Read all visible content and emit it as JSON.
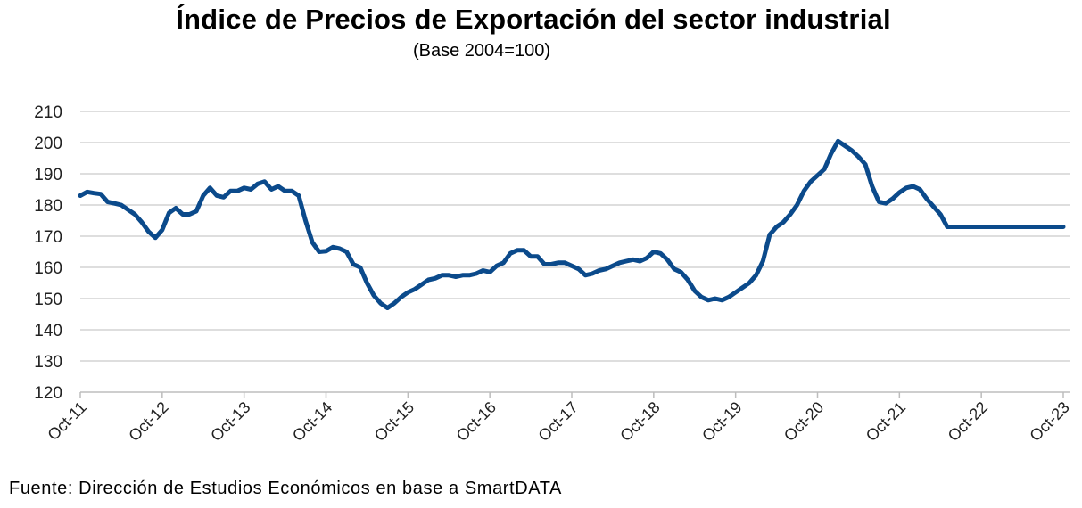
{
  "chart_data": {
    "type": "line",
    "title": "Índice de Precios de Exportación del sector industrial",
    "subtitle": "(Base 2004=100)",
    "xlabel": "",
    "ylabel": "",
    "ylim": [
      120,
      210
    ],
    "yticks": [
      120,
      130,
      140,
      150,
      160,
      170,
      180,
      190,
      200,
      210
    ],
    "grid": true,
    "legend": "none",
    "line_color": "#0b4a8b",
    "categories": [
      "Oct-11",
      "Oct-12",
      "Oct-13",
      "Oct-14",
      "Oct-15",
      "Oct-16",
      "Oct-17",
      "Oct-18",
      "Oct-19",
      "Oct-20",
      "Oct-21",
      "Oct-22",
      "Oct-23"
    ],
    "x_unit": "months since Oct-11",
    "series": [
      {
        "x": [
          0,
          1,
          2,
          3,
          4,
          5,
          6,
          7,
          8,
          9,
          10,
          11,
          12,
          13,
          14,
          15,
          16,
          17,
          18,
          19,
          20,
          21,
          22,
          23,
          24,
          25,
          26,
          27,
          28,
          29,
          30,
          31,
          32,
          33,
          34,
          35,
          36,
          37,
          38,
          39,
          40,
          41,
          42,
          43,
          44,
          45,
          46,
          47,
          48,
          49,
          50,
          51,
          52,
          53,
          54,
          55,
          56,
          57,
          58,
          59,
          60,
          61,
          62,
          63,
          64,
          65,
          66,
          67,
          68,
          69,
          70,
          71,
          72,
          73,
          74,
          75,
          76,
          77,
          78,
          79,
          80,
          81,
          82,
          83,
          84,
          85,
          86,
          87,
          88,
          89,
          90,
          91,
          92,
          93,
          94,
          95,
          96,
          97,
          98,
          99,
          100,
          101,
          102,
          103,
          104,
          105,
          106,
          107,
          108,
          109,
          110,
          111,
          112,
          113,
          114,
          115,
          116,
          117,
          118,
          119,
          120,
          121,
          122,
          123,
          124,
          125,
          126,
          127,
          128,
          129,
          130,
          131,
          132,
          133,
          134,
          135,
          136,
          137,
          138,
          139,
          140,
          141,
          142,
          143,
          144
        ],
        "values": [
          183.0,
          184.2,
          183.8,
          183.5,
          181.0,
          180.5,
          180.0,
          178.5,
          177.0,
          174.5,
          171.5,
          169.5,
          172.0,
          177.5,
          179.0,
          177.0,
          177.0,
          178.0,
          183.0,
          185.5,
          183.0,
          182.5,
          184.5,
          184.5,
          185.5,
          185.0,
          186.8,
          187.5,
          185.0,
          186.0,
          184.5,
          184.5,
          183.0,
          175.0,
          168.0,
          165.0,
          165.2,
          166.5,
          166.0,
          165.0,
          161.0,
          160.0,
          155.0,
          151.0,
          148.5,
          147.0,
          148.5,
          150.5,
          152.0,
          153.0,
          154.5,
          156.0,
          156.5,
          157.5,
          157.5,
          157.0,
          157.5,
          157.5,
          158.0,
          159.0,
          158.5,
          160.5,
          161.5,
          164.5,
          165.5,
          165.5,
          163.5,
          163.5,
          161.0,
          161.0,
          161.5,
          161.5,
          160.5,
          159.5,
          157.5,
          158.0,
          159.0,
          159.5,
          160.5,
          161.5,
          162.0,
          162.5,
          162.0,
          163.0,
          165.0,
          164.5,
          162.5,
          159.5,
          158.5,
          156.0,
          152.5,
          150.5,
          149.5,
          150.0,
          149.5,
          150.5,
          152.0,
          153.5,
          155.0,
          157.5,
          162.0,
          170.5,
          173.0,
          174.5,
          177.0,
          180.0,
          184.5,
          187.5,
          189.5,
          191.5,
          196.5,
          200.5,
          199.0,
          197.5,
          195.5,
          193.0,
          186.0,
          181.0,
          180.5,
          182.0,
          184.0,
          185.5,
          186.0,
          185.0,
          182.0,
          179.5,
          177.0,
          173.0,
          173.0,
          173.0,
          173.0,
          173.0,
          173.0,
          173.0,
          173.0,
          173.0,
          173.0,
          173.0,
          173.0,
          173.0,
          173.0,
          173.0,
          173.0,
          173.0,
          173.0
        ]
      }
    ]
  },
  "source": "Fuente: Dirección de Estudios Económicos en base a SmartDATA"
}
